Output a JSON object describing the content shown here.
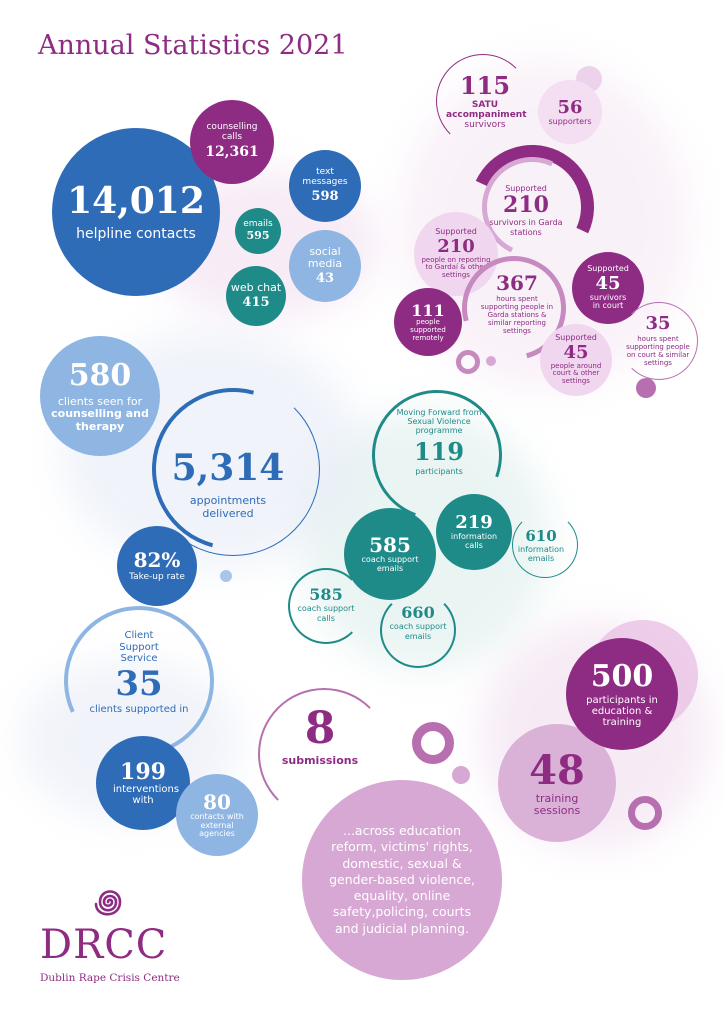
{
  "title": "Annual Statistics 2021",
  "helpline": {
    "total_value": "14,012",
    "total_label": "helpline contacts",
    "counselling_label": "counselling calls",
    "counselling_value": "12,361",
    "text_label": "text messages",
    "text_value": "598",
    "emails_label": "emails",
    "emails_value": "595",
    "webchat_label": "web chat",
    "webchat_value": "415",
    "social_label": "social media",
    "social_value": "43"
  },
  "satu": {
    "s115_value": "115",
    "s115_label_1": "SATU",
    "s115_label_2": "accompaniment",
    "s115_label_3": "survivors",
    "s56_value": "56",
    "s56_label": "supporters",
    "s210a_pre": "Supported",
    "s210a_value": "210",
    "s210a_label": "survivors in Garda stations",
    "s210b_pre": "Supported",
    "s210b_value": "210",
    "s210b_label": "people on reporting to Gardaí & other settings",
    "s367_value": "367",
    "s367_label": "hours spent supporting people in Garda stations & similar reporting settings",
    "s45a_pre": "Supported",
    "s45a_value": "45",
    "s45a_label": "survivors in court",
    "s111_value": "111",
    "s111_label": "people supported remotely",
    "s45b_pre": "Supported",
    "s45b_value": "45",
    "s45b_label": "people around court & other settings",
    "s35_value": "35",
    "s35_label": "hours spent supporting people on court & similar settings"
  },
  "therapy": {
    "clients_value": "580",
    "clients_label_1": "clients seen for",
    "clients_label_2": "counselling and therapy",
    "appointments_value": "5,314",
    "appointments_label": "appointments delivered",
    "takeup_value": "82%",
    "takeup_label": "Take-up rate"
  },
  "moving_forward": {
    "programme_label": "Moving Forward from Sexual Violence programme",
    "programme_value": "119",
    "programme_sub": "participants",
    "info_calls_value": "219",
    "info_calls_label": "information calls",
    "info_emails_value": "610",
    "info_emails_label": "information emails",
    "coach_emails_value": "585",
    "coach_emails_label": "coach support emails",
    "coach_calls_value": "585",
    "coach_calls_label": "coach support calls",
    "coach_emails2_value": "660",
    "coach_emails2_label": "coach support emails"
  },
  "client_support": {
    "service_label": "Client Support Service",
    "clients_value": "35",
    "clients_label": "clients supported in",
    "interventions_value": "199",
    "interventions_label": "interventions with",
    "contacts_value": "80",
    "contacts_label": "contacts with external agencies"
  },
  "submissions": {
    "value": "8",
    "label": "submissions",
    "areas": "...across education reform, victims' rights, domestic, sexual & gender-based violence, equality, online safety,policing, courts and judicial planning."
  },
  "education": {
    "participants_value": "500",
    "participants_label": "participants in education & training",
    "sessions_value": "48",
    "sessions_label": "training sessions"
  },
  "org": {
    "logo": "DRCC",
    "name": "Dublin Rape Crisis Centre"
  },
  "colors": {
    "purple": "#8e2c83",
    "dark_blue": "#2f6cb8",
    "teal": "#1f8b88",
    "light_blue": "#8fb6e2",
    "lilac": "#d7a8d4",
    "mauve": "#b76fb0"
  }
}
